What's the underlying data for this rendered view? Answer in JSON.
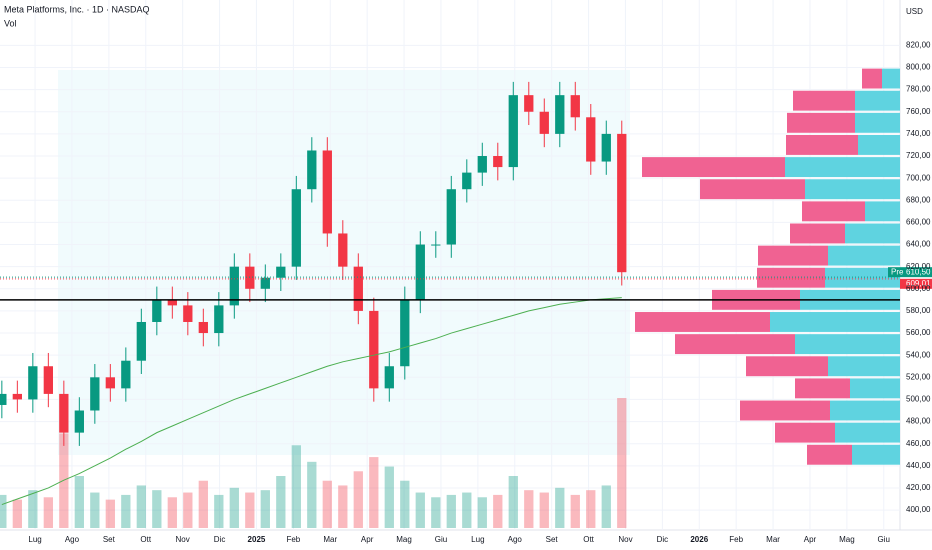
{
  "chart_data": {
    "type": "candlestick",
    "title": "Meta Platforms, Inc. · 1D · NASDAQ",
    "volume_label": "Vol",
    "currency": "USD",
    "xlim": [
      -0.95,
      23.44
    ],
    "xticks": [
      {
        "value": 0,
        "label": "Lug"
      },
      {
        "value": 1,
        "label": "Ago"
      },
      {
        "value": 2,
        "label": "Set"
      },
      {
        "value": 3,
        "label": "Ott"
      },
      {
        "value": 4,
        "label": "Nov"
      },
      {
        "value": 5,
        "label": "Dic"
      },
      {
        "value": 6,
        "label": "2025"
      },
      {
        "value": 7,
        "label": "Feb"
      },
      {
        "value": 8,
        "label": "Mar"
      },
      {
        "value": 9,
        "label": "Apr"
      },
      {
        "value": 10,
        "label": "Mag"
      },
      {
        "value": 11,
        "label": "Giu"
      },
      {
        "value": 12,
        "label": "Lug"
      },
      {
        "value": 13,
        "label": "Ago"
      },
      {
        "value": 14,
        "label": "Set"
      },
      {
        "value": 15,
        "label": "Ott"
      },
      {
        "value": 16,
        "label": "Nov"
      },
      {
        "value": 17,
        "label": "Dic"
      },
      {
        "value": 18,
        "label": "2026"
      },
      {
        "value": 19,
        "label": "Feb"
      },
      {
        "value": 20,
        "label": "Mar"
      },
      {
        "value": 21,
        "label": "Apr"
      },
      {
        "value": 22,
        "label": "Mag"
      },
      {
        "value": 23,
        "label": "Giu"
      }
    ],
    "ylim": [
      382,
      861
    ],
    "yticks": [
      {
        "value": 400,
        "label": "400,00"
      },
      {
        "value": 420,
        "label": "420,00"
      },
      {
        "value": 440,
        "label": "440,00"
      },
      {
        "value": 460,
        "label": "460,00"
      },
      {
        "value": 480,
        "label": "480,00"
      },
      {
        "value": 500,
        "label": "500,00"
      },
      {
        "value": 520,
        "label": "520,00"
      },
      {
        "value": 540,
        "label": "540,00"
      },
      {
        "value": 560,
        "label": "560,00"
      },
      {
        "value": 580,
        "label": "580,00"
      },
      {
        "value": 600,
        "label": "600,00"
      },
      {
        "value": 620,
        "label": "620,00"
      },
      {
        "value": 640,
        "label": "640,00"
      },
      {
        "value": 660,
        "label": "660,00"
      },
      {
        "value": 680,
        "label": "680,00"
      },
      {
        "value": 700,
        "label": "700,00"
      },
      {
        "value": 720,
        "label": "720,00"
      },
      {
        "value": 740,
        "label": "740,00"
      },
      {
        "value": 760,
        "label": "760,00"
      },
      {
        "value": 780,
        "label": "780,00"
      },
      {
        "value": 800,
        "label": "800,00"
      },
      {
        "value": 820,
        "label": "820,00"
      }
    ],
    "up_color": "#089981",
    "down_color": "#f23645",
    "x": [
      -0.9,
      -0.48,
      -0.06,
      0.36,
      0.78,
      1.2,
      1.62,
      2.04,
      2.46,
      2.88,
      3.3,
      3.72,
      4.14,
      4.56,
      4.98,
      5.4,
      5.82,
      6.24,
      6.66,
      7.08,
      7.5,
      7.92,
      8.34,
      8.76,
      9.18,
      9.6,
      10.02,
      10.44,
      10.86,
      11.28,
      11.7,
      12.12,
      12.54,
      12.96,
      13.38,
      13.8,
      14.22,
      14.64,
      15.06,
      15.48,
      15.9
    ],
    "open": [
      495,
      505,
      500,
      530,
      505,
      470,
      490,
      520,
      510,
      535,
      570,
      590,
      585,
      570,
      560,
      585,
      620,
      600,
      610,
      620,
      690,
      725,
      650,
      620,
      580,
      510,
      530,
      590,
      640,
      640,
      690,
      705,
      720,
      710,
      775,
      760,
      740,
      775,
      755,
      715,
      740
    ],
    "high": [
      517,
      517,
      542,
      542,
      517,
      502,
      532,
      532,
      547,
      582,
      602,
      602,
      597,
      582,
      597,
      632,
      632,
      622,
      632,
      702,
      737,
      737,
      662,
      632,
      592,
      542,
      602,
      652,
      652,
      702,
      717,
      732,
      732,
      787,
      787,
      772,
      787,
      787,
      767,
      752,
      752
    ],
    "low": [
      483,
      488,
      488,
      493,
      458,
      458,
      478,
      498,
      498,
      523,
      558,
      573,
      558,
      548,
      548,
      573,
      588,
      588,
      598,
      608,
      678,
      638,
      608,
      568,
      498,
      498,
      518,
      578,
      628,
      628,
      678,
      693,
      698,
      698,
      748,
      728,
      728,
      743,
      703,
      703,
      603
    ],
    "close": [
      505,
      500,
      530,
      505,
      470,
      490,
      520,
      510,
      535,
      570,
      590,
      585,
      570,
      560,
      585,
      620,
      600,
      610,
      620,
      690,
      725,
      650,
      620,
      580,
      510,
      530,
      590,
      640,
      640,
      690,
      705,
      720,
      710,
      775,
      760,
      740,
      775,
      755,
      715,
      740,
      615
    ],
    "volume": [
      14,
      12,
      16,
      13,
      40,
      22,
      15,
      12,
      14,
      18,
      16,
      13,
      15,
      20,
      14,
      17,
      15,
      16,
      22,
      35,
      28,
      20,
      18,
      24,
      30,
      26,
      20,
      15,
      13,
      14,
      15,
      13,
      14,
      22,
      16,
      15,
      17,
      14,
      16,
      18,
      55
    ],
    "moving_average": {
      "color": "#4caf50",
      "values": [
        405,
        410,
        415,
        420,
        427,
        433,
        440,
        447,
        455,
        462,
        470,
        476,
        482,
        488,
        494,
        500,
        505,
        510,
        515,
        520,
        525,
        530,
        534,
        537,
        540,
        543,
        547,
        551,
        555,
        560,
        564,
        568,
        572,
        576,
        580,
        583,
        586,
        588,
        590,
        591,
        592
      ]
    },
    "support_line": 590,
    "volume_profile": {
      "up_color": "#5fd3e0",
      "down_color": "#f06292",
      "levels": [
        790,
        770,
        750,
        730,
        710,
        690,
        670,
        650,
        630,
        610,
        590,
        570,
        550,
        530,
        510,
        490,
        470,
        450
      ],
      "up": [
        18,
        45,
        45,
        42,
        115,
        95,
        35,
        55,
        72,
        75,
        100,
        130,
        105,
        72,
        50,
        70,
        65,
        48
      ],
      "down": [
        20,
        62,
        68,
        72,
        143,
        105,
        63,
        55,
        70,
        68,
        88,
        135,
        120,
        82,
        55,
        90,
        60,
        45
      ]
    },
    "pre_market": {
      "tag": "Pre",
      "value": 610.5,
      "label": "610,50"
    },
    "last_price": {
      "value": 609.01,
      "label": "609,01"
    }
  }
}
